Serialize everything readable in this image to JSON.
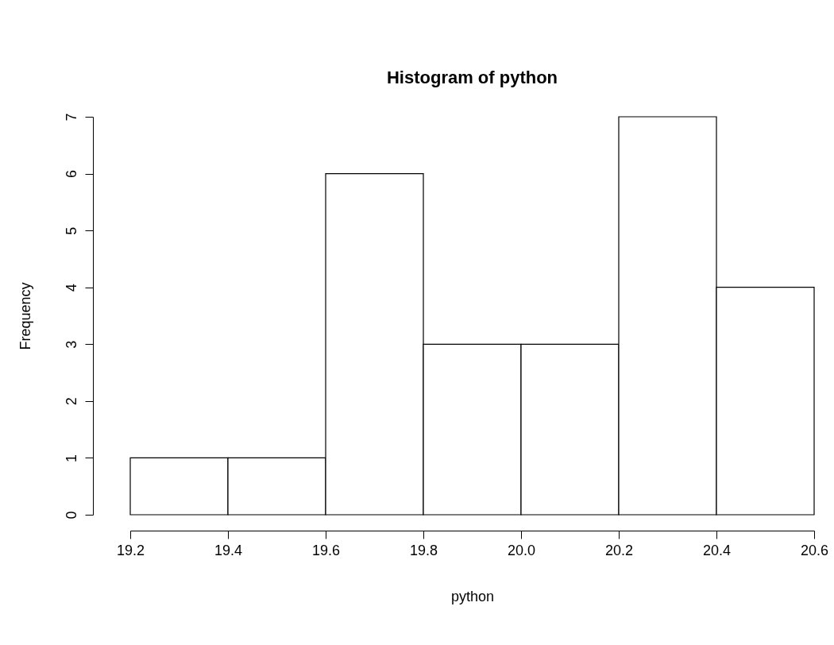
{
  "chart_data": {
    "type": "histogram",
    "title": "Histogram of python",
    "xlabel": "python",
    "ylabel": "Frequency",
    "bins": [
      19.2,
      19.4,
      19.6,
      19.8,
      20.0,
      20.2,
      20.4,
      20.6
    ],
    "values": [
      1,
      1,
      6,
      3,
      3,
      7,
      4
    ],
    "color": "#ffffff",
    "xlim": [
      19.2,
      20.6
    ],
    "ylim": [
      0,
      7
    ],
    "xticks": [
      19.2,
      19.4,
      19.6,
      19.8,
      {
        "value": 20.0,
        "label": "20.0"
      },
      20.2,
      20.4,
      20.6
    ],
    "yticks": [
      0,
      1,
      2,
      3,
      4,
      5,
      6,
      7
    ]
  }
}
